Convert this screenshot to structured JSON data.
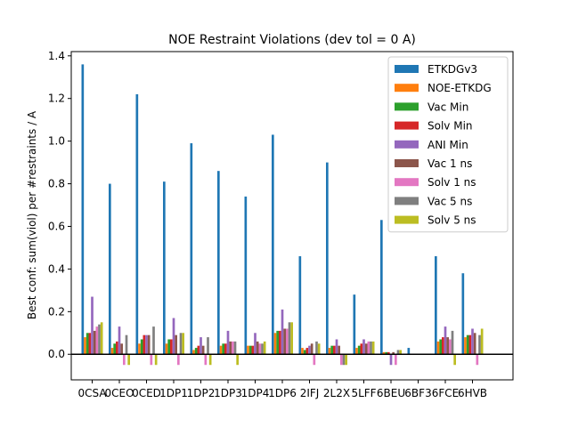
{
  "chart_data": {
    "type": "bar",
    "title": "NOE Restraint Violations (dev tol = 0 A)",
    "xlabel": "",
    "ylabel": "Best conf: sum(viol) per #restraints / A",
    "ylim": [
      -0.12,
      1.42
    ],
    "yticks": [
      0.0,
      0.2,
      0.4,
      0.6,
      0.8,
      1.0,
      1.2,
      1.4
    ],
    "zero_line": true,
    "legend_position": "top-right",
    "categories": [
      "0CSA",
      "0CEO",
      "0CED",
      "1DP1",
      "1DP2",
      "1DP3",
      "1DP4",
      "1DP6",
      "2IFJ",
      "2L2X",
      "5LFF",
      "6BEU",
      "6BF3",
      "6FCE",
      "6HVB"
    ],
    "series": [
      {
        "name": "ETKDGv3",
        "color": "#1f77b4",
        "values": [
          1.36,
          0.8,
          1.22,
          0.81,
          0.99,
          0.86,
          0.74,
          1.03,
          0.46,
          0.9,
          0.28,
          0.63,
          0.03,
          0.46,
          0.38
        ]
      },
      {
        "name": "NOE-ETKDG",
        "color": "#ff7f0e",
        "values": [
          0.08,
          0.03,
          0.05,
          0.05,
          0.02,
          0.04,
          0.04,
          0.1,
          0.03,
          0.03,
          0.03,
          0.01,
          0.0,
          0.06,
          0.08
        ]
      },
      {
        "name": "Vac Min",
        "color": "#2ca02c",
        "values": [
          0.1,
          0.05,
          0.07,
          0.07,
          0.03,
          0.05,
          0.04,
          0.11,
          0.02,
          0.04,
          0.04,
          0.01,
          0.0,
          0.07,
          0.09
        ]
      },
      {
        "name": "Solv Min",
        "color": "#d62728",
        "values": [
          0.1,
          0.06,
          0.09,
          0.07,
          0.04,
          0.05,
          0.04,
          0.11,
          0.03,
          0.04,
          0.05,
          0.01,
          0.0,
          0.08,
          0.09
        ]
      },
      {
        "name": "ANI Min",
        "color": "#9467bd",
        "values": [
          0.27,
          0.13,
          0.09,
          0.17,
          0.08,
          0.11,
          0.1,
          0.21,
          0.04,
          0.07,
          0.07,
          -0.05,
          0.0,
          0.13,
          0.12
        ]
      },
      {
        "name": "Vac 1 ns",
        "color": "#8c564b",
        "values": [
          0.11,
          0.05,
          0.09,
          0.09,
          0.04,
          0.06,
          0.06,
          0.12,
          0.05,
          0.04,
          0.05,
          0.01,
          0.0,
          0.08,
          0.1
        ]
      },
      {
        "name": "Solv 1 ns",
        "color": "#e377c2",
        "values": [
          0.13,
          -0.05,
          -0.05,
          -0.05,
          -0.05,
          0.06,
          0.05,
          0.12,
          -0.05,
          -0.05,
          0.06,
          -0.05,
          0.0,
          0.07,
          -0.05
        ]
      },
      {
        "name": "Vac 5 ns",
        "color": "#7f7f7f",
        "values": [
          0.14,
          0.09,
          0.13,
          0.1,
          0.08,
          0.06,
          0.05,
          0.15,
          0.06,
          -0.05,
          0.06,
          0.02,
          0.0,
          0.11,
          0.09
        ]
      },
      {
        "name": "Solv 5 ns",
        "color": "#bcbd22",
        "values": [
          0.15,
          -0.05,
          -0.05,
          0.1,
          -0.05,
          -0.05,
          0.06,
          0.15,
          0.05,
          -0.05,
          0.06,
          0.02,
          0.0,
          -0.05,
          0.12
        ]
      }
    ]
  }
}
